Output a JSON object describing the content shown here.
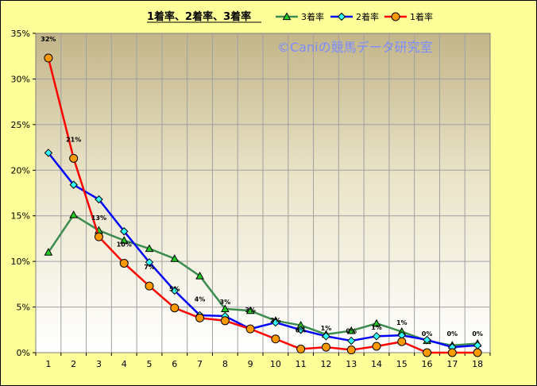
{
  "chart_data": {
    "type": "line",
    "title": "1着率、2着率、3着率",
    "watermark": "©Caniの競馬データ研究室",
    "x": [
      1,
      2,
      3,
      4,
      5,
      6,
      7,
      8,
      9,
      10,
      11,
      12,
      13,
      14,
      15,
      16,
      17,
      18
    ],
    "ylim": [
      0,
      35
    ],
    "yticks": [
      "0%",
      "5%",
      "10%",
      "15%",
      "20%",
      "25%",
      "30%",
      "35%"
    ],
    "ytick_values": [
      0,
      5,
      10,
      15,
      20,
      25,
      30,
      35
    ],
    "grid": true,
    "legend_position": "top-center",
    "series": [
      {
        "name": "3着率",
        "color": "#3c8c50",
        "marker": "triangle",
        "marker_color": "#22cc22",
        "values": [
          11.0,
          15.1,
          13.4,
          12.3,
          11.4,
          10.3,
          8.4,
          4.8,
          4.6,
          3.5,
          3.0,
          2.0,
          2.4,
          3.2,
          2.3,
          1.3,
          0.8,
          1.0
        ]
      },
      {
        "name": "2着率",
        "color": "#0000ff",
        "marker": "diamond",
        "marker_color": "#33ffff",
        "values": [
          21.9,
          18.4,
          16.8,
          13.3,
          9.9,
          6.8,
          4.1,
          4.0,
          2.6,
          3.3,
          2.5,
          1.8,
          1.3,
          1.8,
          1.9,
          1.4,
          0.6,
          0.8
        ]
      },
      {
        "name": "1着率",
        "color": "#ff0000",
        "marker": "circle",
        "marker_color": "#ff9900",
        "values": [
          32.3,
          21.3,
          12.7,
          9.8,
          7.3,
          4.9,
          3.8,
          3.5,
          2.6,
          1.5,
          0.4,
          0.6,
          0.3,
          0.7,
          1.2,
          0.0,
          0.0,
          0.0
        ]
      }
    ],
    "data_labels": [
      {
        "x": 1,
        "text": "32%"
      },
      {
        "x": 2,
        "text": "21%"
      },
      {
        "x": 3,
        "text": "13%"
      },
      {
        "x": 4,
        "text": "10%"
      },
      {
        "x": 5,
        "text": "7%"
      },
      {
        "x": 6,
        "text": "5%"
      },
      {
        "x": 7,
        "text": "4%"
      },
      {
        "x": 8,
        "text": "3%"
      },
      {
        "x": 9,
        "text": "3%"
      },
      {
        "x": 10,
        "text": "2%"
      },
      {
        "x": 11,
        "text": "0%"
      },
      {
        "x": 12,
        "text": "1%"
      },
      {
        "x": 13,
        "text": "0%"
      },
      {
        "x": 14,
        "text": "1%"
      },
      {
        "x": 15,
        "text": "1%"
      },
      {
        "x": 16,
        "text": "0%"
      },
      {
        "x": 17,
        "text": "0%"
      },
      {
        "x": 18,
        "text": "0%"
      }
    ]
  }
}
